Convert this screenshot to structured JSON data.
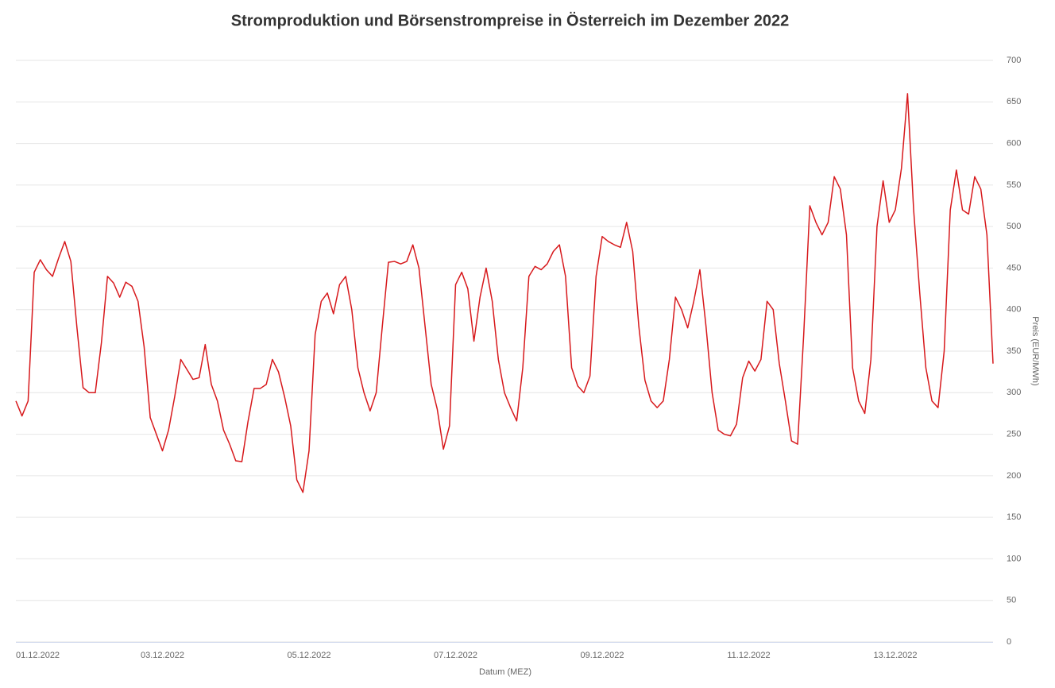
{
  "chart_data": {
    "type": "line",
    "title": "Stromproduktion und Börsenstrompreise in Österreich im Dezember 2022",
    "x_label": "Datum (MEZ)",
    "y_label": "Preis (EUR/MWh)",
    "series": [
      {
        "name": "Preis",
        "color": "#d7191c",
        "values": [
          290,
          272,
          290,
          445,
          460,
          448,
          440,
          462,
          482,
          458,
          378,
          306,
          300,
          300,
          360,
          440,
          432,
          415,
          433,
          428,
          410,
          355,
          270,
          250,
          230,
          255,
          295,
          340,
          328,
          316,
          318,
          358,
          310,
          290,
          255,
          238,
          218,
          217,
          265,
          305,
          305,
          310,
          340,
          325,
          295,
          260,
          195,
          180,
          230,
          370,
          410,
          420,
          395,
          430,
          440,
          400,
          330,
          300,
          278,
          300,
          380,
          457,
          458,
          455,
          458,
          478,
          450,
          380,
          310,
          280,
          232,
          260,
          430,
          445,
          425,
          362,
          415,
          450,
          410,
          340,
          300,
          282,
          266,
          330,
          440,
          452,
          448,
          455,
          470,
          478,
          440,
          330,
          308,
          300,
          320,
          440,
          488,
          482,
          478,
          475,
          505,
          470,
          380,
          315,
          290,
          282,
          290,
          340,
          415,
          400,
          378,
          410,
          448,
          380,
          300,
          255,
          250,
          248,
          262,
          318,
          338,
          326,
          340,
          410,
          400,
          335,
          290,
          242,
          238,
          370,
          525,
          505,
          490,
          505,
          560,
          545,
          490,
          330,
          290,
          275,
          340,
          500,
          555,
          505,
          520,
          570,
          660,
          520,
          420,
          330,
          290,
          282,
          350,
          520,
          568,
          520,
          515,
          560,
          545,
          490,
          335
        ]
      }
    ],
    "xlim": [
      0,
      160
    ],
    "xticks": [
      {
        "value": 0,
        "label": "01.12.2022"
      },
      {
        "value": 24,
        "label": "03.12.2022"
      },
      {
        "value": 48,
        "label": "05.12.2022"
      },
      {
        "value": 72,
        "label": "07.12.2022"
      },
      {
        "value": 96,
        "label": "09.12.2022"
      },
      {
        "value": 120,
        "label": "11.12.2022"
      },
      {
        "value": 144,
        "label": "13.12.2022"
      }
    ],
    "ylim": [
      0,
      700
    ],
    "yticks": [
      0,
      50,
      100,
      150,
      200,
      250,
      300,
      350,
      400,
      450,
      500,
      550,
      600,
      650,
      700
    ],
    "grid": true
  }
}
